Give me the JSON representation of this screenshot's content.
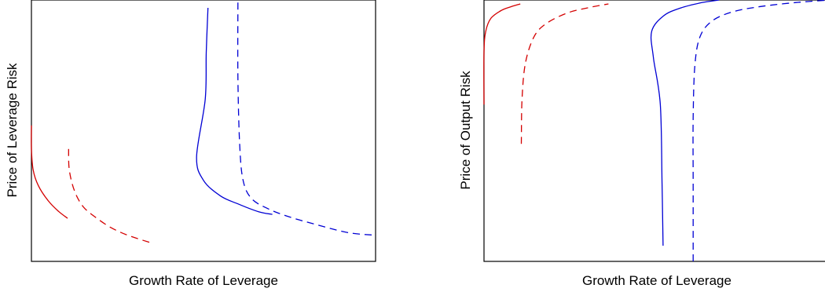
{
  "chart_data": [
    {
      "type": "line",
      "xlabel": "Growth Rate of Leverage",
      "ylabel": "Price of Leverage Risk",
      "xlim": [
        0,
        1
      ],
      "ylim": [
        0,
        1
      ],
      "ticks": "none",
      "grid": false,
      "series": [
        {
          "color": "#d40000",
          "dash": "solid",
          "points": [
            [
              0.0,
              0.52
            ],
            [
              0.0,
              0.43
            ],
            [
              0.005,
              0.35
            ],
            [
              0.02,
              0.29
            ],
            [
              0.05,
              0.23
            ],
            [
              0.08,
              0.19
            ],
            [
              0.105,
              0.165
            ]
          ]
        },
        {
          "color": "#d40000",
          "dash": "dashed",
          "points": [
            [
              0.108,
              0.43
            ],
            [
              0.11,
              0.35
            ],
            [
              0.125,
              0.27
            ],
            [
              0.15,
              0.21
            ],
            [
              0.185,
              0.17
            ],
            [
              0.23,
              0.13
            ],
            [
              0.28,
              0.1
            ],
            [
              0.35,
              0.07
            ]
          ]
        },
        {
          "color": "#0000d4",
          "dash": "solid",
          "points": [
            [
              0.513,
              0.97
            ],
            [
              0.508,
              0.8
            ],
            [
              0.505,
              0.62
            ],
            [
              0.48,
              0.4
            ],
            [
              0.5,
              0.31
            ],
            [
              0.55,
              0.25
            ],
            [
              0.6,
              0.22
            ],
            [
              0.66,
              0.19
            ],
            [
              0.7,
              0.18
            ]
          ]
        },
        {
          "color": "#0000d4",
          "dash": "dashed",
          "points": [
            [
              0.6,
              0.99
            ],
            [
              0.6,
              0.7
            ],
            [
              0.605,
              0.45
            ],
            [
              0.615,
              0.31
            ],
            [
              0.64,
              0.24
            ],
            [
              0.69,
              0.2
            ],
            [
              0.75,
              0.17
            ],
            [
              0.83,
              0.14
            ],
            [
              0.92,
              0.11
            ],
            [
              1.0,
              0.1
            ]
          ]
        }
      ]
    },
    {
      "type": "line",
      "xlabel": "Growth Rate of Leverage",
      "ylabel": "Price of Output Risk",
      "xlim": [
        0,
        1
      ],
      "ylim": [
        0,
        1
      ],
      "ticks": "none",
      "grid": false,
      "series": [
        {
          "color": "#d40000",
          "dash": "solid",
          "points": [
            [
              0.0,
              0.6
            ],
            [
              0.0,
              0.8
            ],
            [
              0.005,
              0.88
            ],
            [
              0.02,
              0.93
            ],
            [
              0.05,
              0.96
            ],
            [
              0.08,
              0.975
            ],
            [
              0.105,
              0.985
            ]
          ]
        },
        {
          "color": "#d40000",
          "dash": "dashed",
          "points": [
            [
              0.108,
              0.45
            ],
            [
              0.11,
              0.62
            ],
            [
              0.12,
              0.76
            ],
            [
              0.145,
              0.86
            ],
            [
              0.18,
              0.91
            ],
            [
              0.24,
              0.95
            ],
            [
              0.3,
              0.97
            ],
            [
              0.36,
              0.985
            ]
          ]
        },
        {
          "color": "#0000d4",
          "dash": "solid",
          "points": [
            [
              0.518,
              0.06
            ],
            [
              0.515,
              0.3
            ],
            [
              0.51,
              0.6
            ],
            [
              0.49,
              0.78
            ],
            [
              0.485,
              0.88
            ],
            [
              0.52,
              0.94
            ],
            [
              0.57,
              0.97
            ],
            [
              0.63,
              0.99
            ],
            [
              0.68,
              1.0
            ]
          ]
        },
        {
          "color": "#0000d4",
          "dash": "dashed",
          "points": [
            [
              0.605,
              0.0
            ],
            [
              0.605,
              0.3
            ],
            [
              0.605,
              0.55
            ],
            [
              0.61,
              0.75
            ],
            [
              0.625,
              0.86
            ],
            [
              0.66,
              0.92
            ],
            [
              0.72,
              0.955
            ],
            [
              0.8,
              0.975
            ],
            [
              0.9,
              0.99
            ],
            [
              1.0,
              1.0
            ]
          ]
        }
      ]
    }
  ]
}
